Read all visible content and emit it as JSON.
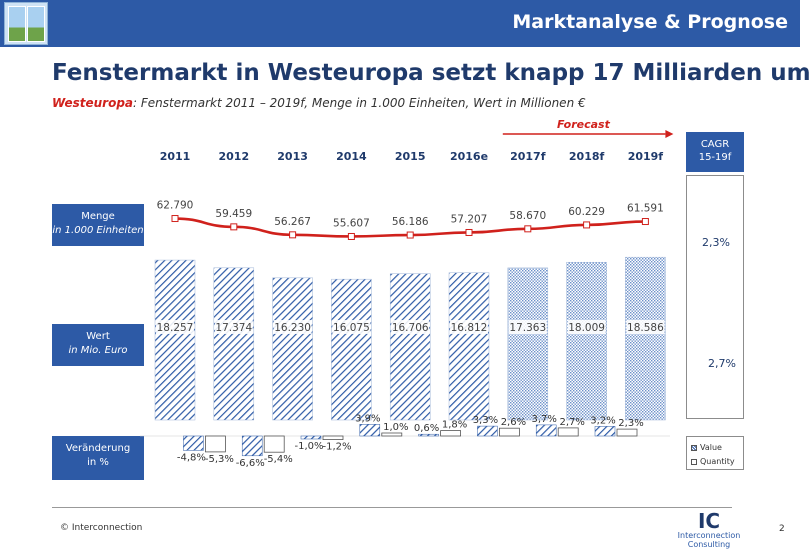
{
  "header": {
    "title": "Marktanalyse & Prognose"
  },
  "title": "Fenstermarkt in Westeuropa setzt knapp 17 Milliarden um",
  "subtitle": {
    "highlight": "Westeuropa",
    "text": ": Fenstermarkt 2011 – 2019f, Menge in 1.000 Einheiten, Wert in Millionen €"
  },
  "forecast_label": "Forecast",
  "cagr": {
    "line1": "CAGR",
    "line2": "15-19f",
    "menge": "2,3%",
    "wert": "2,7%"
  },
  "row_labels": {
    "menge": {
      "line1": "Menge",
      "line2": "in 1.000 Einheiten"
    },
    "wert": {
      "line1": "Wert",
      "line2": "in Mio. Euro"
    },
    "veraenderung": {
      "line1": "Veränderung",
      "line2": "in %"
    }
  },
  "legend": {
    "value": "Value",
    "quantity": "Quantity"
  },
  "footer": {
    "copyright": "© Interconnection",
    "page": "2"
  },
  "logo": {
    "letters": "IC",
    "line1": "Interconnection",
    "line2": "Consulting"
  },
  "colors": {
    "brand": "#2d5aa6",
    "line": "#d0211c",
    "bar": "#2d5aa6"
  },
  "chart_data": {
    "type": "bar",
    "categories": [
      "2011",
      "2012",
      "2013",
      "2014",
      "2015",
      "2016e",
      "2017f",
      "2018f",
      "2019f"
    ],
    "forecast_from_index": 6,
    "quantity": {
      "values": [
        62790,
        59459,
        56267,
        55607,
        56186,
        57207,
        58670,
        60229,
        61591
      ],
      "labels": [
        "62.790",
        "59.459",
        "56.267",
        "55.607",
        "56.186",
        "57.207",
        "58.670",
        "60.229",
        "61.591"
      ]
    },
    "value": {
      "values": [
        18257,
        17374,
        16230,
        16075,
        16706,
        16812,
        17363,
        18009,
        18586
      ],
      "labels": [
        "18.257",
        "17.374",
        "16.230",
        "16.075",
        "16.706",
        "16.812",
        "17.363",
        "18.009",
        "18.586"
      ]
    },
    "change": {
      "value_pct": [
        -4.8,
        -6.6,
        -1.0,
        3.9,
        0.6,
        3.3,
        3.7,
        3.2
      ],
      "value_labels": [
        "-4,8%",
        "-6,6%",
        "-1,0%",
        "3,9%",
        "0,6%",
        "3,3%",
        "3,7%",
        "3,2%"
      ],
      "quantity_pct": [
        -5.3,
        -5.4,
        -1.2,
        1.0,
        1.8,
        2.6,
        2.7,
        2.3
      ],
      "quantity_labels": [
        "-5,3%",
        "-5,4%",
        "-1,2%",
        "1,0%",
        "1,8%",
        "2,6%",
        "2,7%",
        "2,3%"
      ]
    }
  }
}
